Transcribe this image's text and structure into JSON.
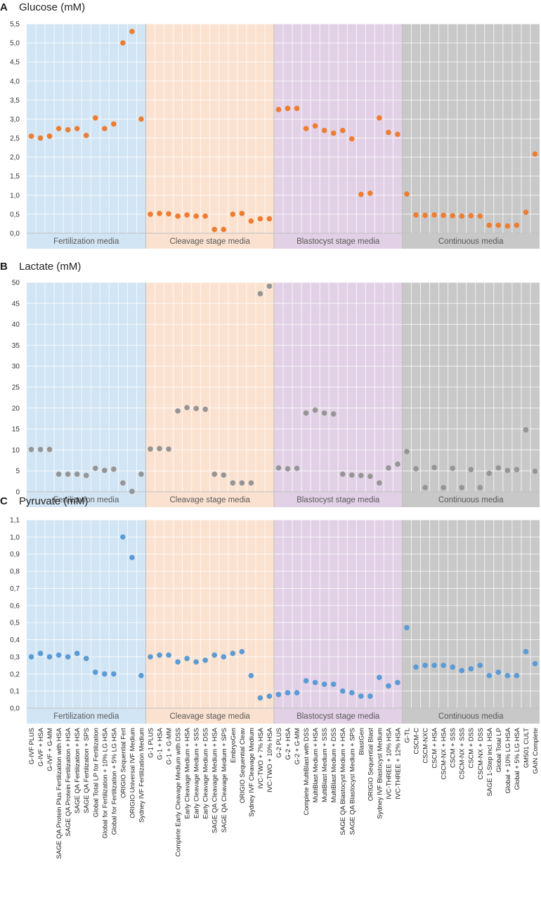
{
  "chart_data": {
    "type": "scatter",
    "categories": [
      "G-IVF PLUS",
      "G-IVF + HSA",
      "G-IVF + G-MM",
      "SAGE QA Protein Plus Fertilization with HSA",
      "SAGE QA Protein Fertilization + HSA",
      "SAGE QA Fertilization + HSA",
      "SAGE QA Fertilization + SPS",
      "Global Total LP for Fertilization",
      "Global for Fertilization + 10% LG HSA",
      "Global for Fertilization + 5% LG HSA",
      "ORIGIO Sequential Fert",
      "ORIGIO Universal IVF Medium",
      "Sydney IVF Fertilization Medium",
      "G-1 PLUS",
      "G-1 + HSA",
      "G-1 + G-MM",
      "Complete Early Cleavage Medium with DSS",
      "Early Cleavage Medium + HSA",
      "Early Cleavage Medium + SSS",
      "Early Cleavage Medium + DSS",
      "SAGE QA Cleavage Medium + HSA",
      "SAGE QA Cleavage Medium + SPS",
      "EmbryoGen",
      "ORIGIO Sequential Cleav",
      "Sydney IVF Cleavage Medium",
      "IVC-TWO + 7% HSA",
      "IVC-TWO + 10% HSA",
      "G-2 PLUS",
      "G-2 + HSA",
      "G-2 + G-MM",
      "Complete MultiBlast with DSS",
      "MultiBlast Medium + HSA",
      "MultiBlast Medium + SSS",
      "MultiBlast Medium + DSS",
      "SAGE QA Blastocyst Medium + HSA",
      "SAGE QA Blastocyst Medium + SPS",
      "BlastGen",
      "ORIGIO Sequential Blast",
      "Sydney IVF Blastocyst Medium",
      "IVC-THREE + 10% HSA",
      "IVC-THREE + 12% HSA",
      "G-TL",
      "CSCM-C",
      "CSCM-NXC",
      "CSCM + HSA",
      "CSCM-NX + HSA",
      "CSCM + SSS",
      "CSCM-NX + SSS",
      "CSCM + DSS",
      "CSCM-NX + DSS",
      "SAGE 1-Step incl. HSA",
      "Global Total LP",
      "Global + 10% LG HSA",
      "Global + 5% LG HSA",
      "GM501 CULT",
      "GAIN Complete"
    ],
    "segments": [
      {
        "label": "Fertilization media",
        "start": 0,
        "count": 13,
        "color": "#d2e5f4"
      },
      {
        "label": "Cleavage stage media",
        "start": 13,
        "count": 14,
        "color": "#fbe2d0"
      },
      {
        "label": "Blastocyst stage media",
        "start": 27,
        "count": 14,
        "color": "#e2d1e6"
      },
      {
        "label": "Continuous media",
        "start": 41,
        "count": 15,
        "color": "#c8c8c8"
      }
    ],
    "panels": [
      {
        "letter": "A",
        "title": "Glucose (mM)",
        "marker_color": "#ed7d31",
        "ylim": [
          0,
          5.5
        ],
        "yticks": [
          "0,0",
          "0,5",
          "1,0",
          "1,5",
          "2,0",
          "2,5",
          "3,0",
          "3,5",
          "4,0",
          "4,5",
          "5,0",
          "5,5"
        ],
        "values": [
          2.55,
          2.5,
          2.55,
          2.75,
          2.72,
          2.75,
          2.57,
          3.03,
          2.75,
          2.87,
          5.0,
          5.3,
          3.0,
          0.5,
          0.52,
          0.51,
          0.45,
          0.48,
          0.45,
          0.45,
          0.1,
          0.1,
          0.5,
          0.52,
          0.32,
          0.38,
          0.38,
          3.25,
          3.28,
          3.28,
          2.75,
          2.82,
          2.7,
          2.63,
          2.7,
          2.48,
          1.02,
          1.05,
          3.03,
          2.65,
          2.6,
          1.03,
          0.48,
          0.47,
          0.48,
          0.47,
          0.46,
          0.45,
          0.46,
          0.45,
          0.21,
          0.21,
          0.19,
          0.21,
          0.55,
          2.08
        ]
      },
      {
        "letter": "B",
        "title": "Lactate (mM)",
        "marker_color": "#959595",
        "ylim": [
          0,
          50
        ],
        "yticks": [
          "0",
          "5",
          "10",
          "15",
          "20",
          "25",
          "30",
          "35",
          "40",
          "45",
          "50"
        ],
        "values": [
          10.1,
          10.1,
          10.1,
          4.2,
          4.2,
          4.2,
          3.9,
          5.6,
          5.1,
          5.4,
          2.1,
          0.1,
          4.2,
          10.2,
          10.3,
          10.2,
          19.3,
          20.1,
          19.9,
          19.7,
          4.2,
          4.0,
          2.1,
          2.1,
          2.1,
          47.3,
          49.1,
          5.7,
          5.5,
          5.6,
          18.8,
          19.5,
          18.8,
          18.6,
          4.2,
          4.0,
          3.9,
          3.7,
          2.1,
          5.7,
          6.6,
          9.6,
          5.5,
          1.0,
          5.8,
          1.0,
          5.6,
          1.0,
          5.3,
          1.0,
          4.4,
          5.7,
          5.1,
          5.3,
          14.8,
          4.9
        ]
      },
      {
        "letter": "C",
        "title": "Pyruvate (mM)",
        "marker_color": "#5b9bd5",
        "ylim": [
          0,
          1.1
        ],
        "yticks": [
          "0,0",
          "0,1",
          "0,2",
          "0,3",
          "0,4",
          "0,5",
          "0,6",
          "0,7",
          "0,8",
          "0,9",
          "1,0",
          "1,1"
        ],
        "values": [
          0.3,
          0.32,
          0.3,
          0.31,
          0.3,
          0.32,
          0.29,
          0.21,
          0.2,
          0.2,
          1.0,
          0.88,
          0.19,
          0.3,
          0.31,
          0.31,
          0.27,
          0.29,
          0.27,
          0.28,
          0.31,
          0.3,
          0.32,
          0.33,
          0.19,
          0.06,
          0.07,
          0.08,
          0.09,
          0.09,
          0.16,
          0.15,
          0.14,
          0.14,
          0.1,
          0.09,
          0.07,
          0.07,
          0.18,
          0.13,
          0.15,
          0.47,
          0.24,
          0.25,
          0.25,
          0.25,
          0.24,
          0.22,
          0.23,
          0.25,
          0.19,
          0.21,
          0.19,
          0.19,
          0.33,
          0.26
        ]
      }
    ]
  }
}
